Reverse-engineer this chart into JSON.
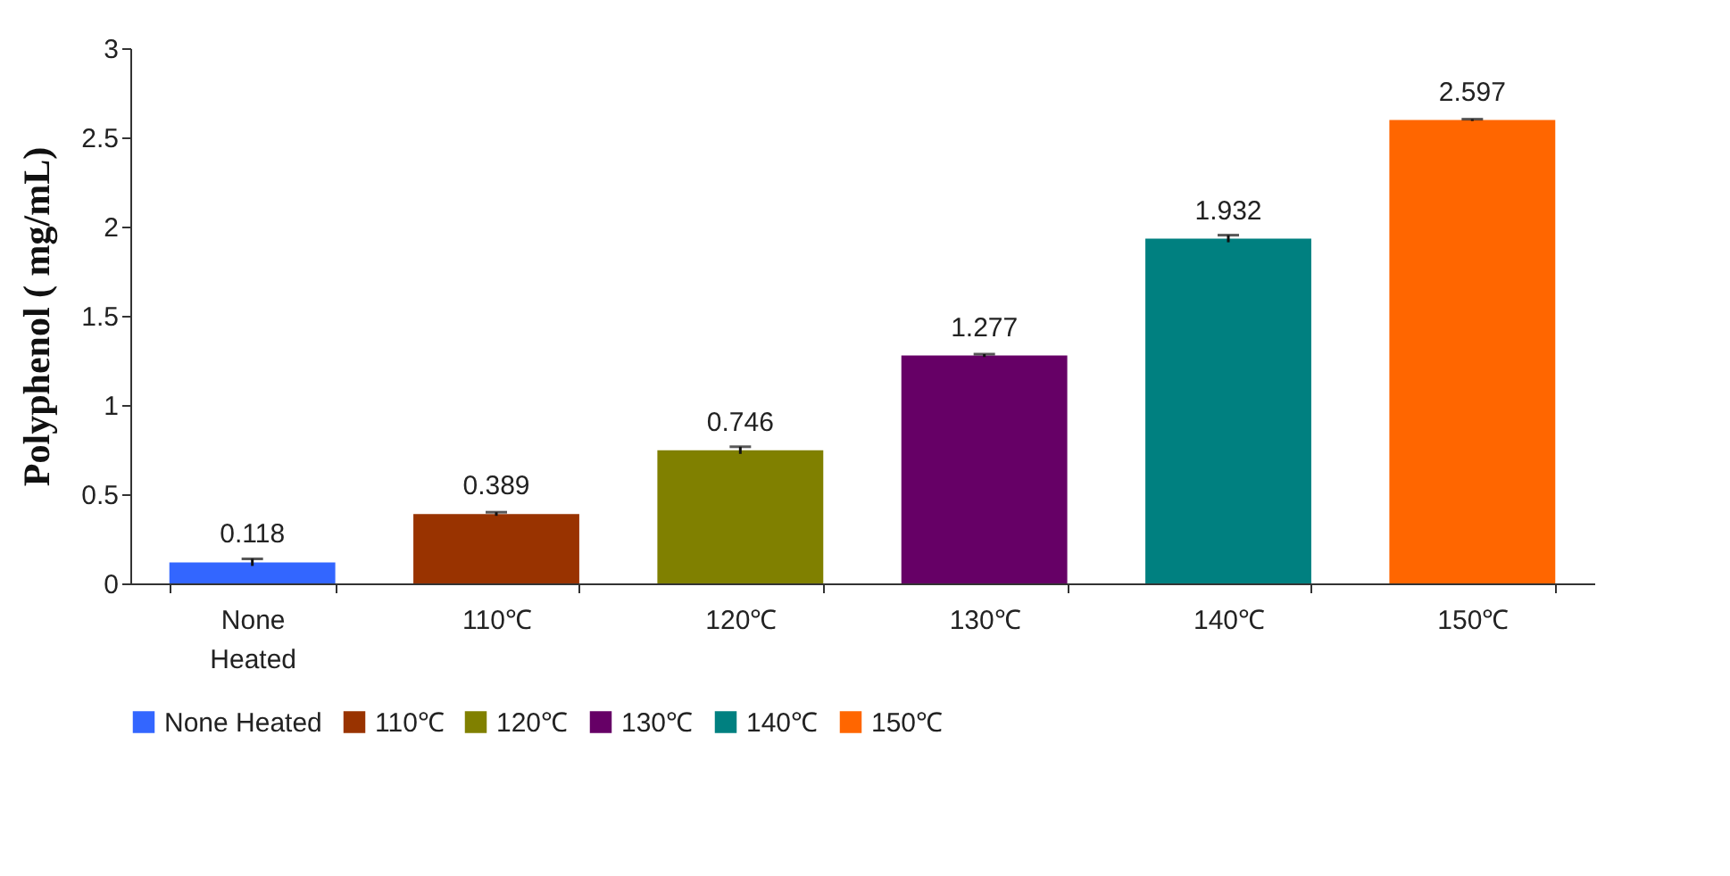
{
  "chart_data": {
    "type": "bar",
    "ylabel": "Polyphenol ( mg/mL)",
    "categories": [
      "None Heated",
      "110℃",
      "120℃",
      "130℃",
      "140℃",
      "150℃"
    ],
    "series": [
      {
        "name": "None Heated",
        "color": "#3366ff",
        "values": [
          0.118,
          null,
          null,
          null,
          null,
          null
        ],
        "errors": [
          0.02,
          null,
          null,
          null,
          null,
          null
        ]
      },
      {
        "name": "110℃",
        "color": "#993300",
        "values": [
          null,
          0.389,
          null,
          null,
          null,
          null
        ],
        "errors": [
          null,
          0.01,
          null,
          null,
          null,
          null
        ]
      },
      {
        "name": "120℃",
        "color": "#808000",
        "values": [
          null,
          null,
          0.746,
          null,
          null,
          null
        ],
        "errors": [
          null,
          null,
          0.02,
          null,
          null,
          null
        ]
      },
      {
        "name": "130℃",
        "color": "#660066",
        "values": [
          null,
          null,
          null,
          1.277,
          null,
          null
        ],
        "errors": [
          null,
          null,
          null,
          0.008,
          null,
          null
        ]
      },
      {
        "name": "140℃",
        "color": "#008080",
        "values": [
          null,
          null,
          null,
          null,
          1.932,
          null
        ],
        "errors": [
          null,
          null,
          null,
          null,
          0.02,
          null
        ]
      },
      {
        "name": "150℃",
        "color": "#ff6600",
        "values": [
          null,
          null,
          null,
          null,
          null,
          2.597
        ],
        "errors": [
          null,
          null,
          null,
          null,
          null,
          0.005
        ]
      }
    ],
    "ylim": [
      0,
      3
    ],
    "yticks": [
      0,
      0.5,
      1,
      1.5,
      2,
      2.5,
      3
    ],
    "data_labels": true,
    "grid": false,
    "legend": "bottom"
  }
}
